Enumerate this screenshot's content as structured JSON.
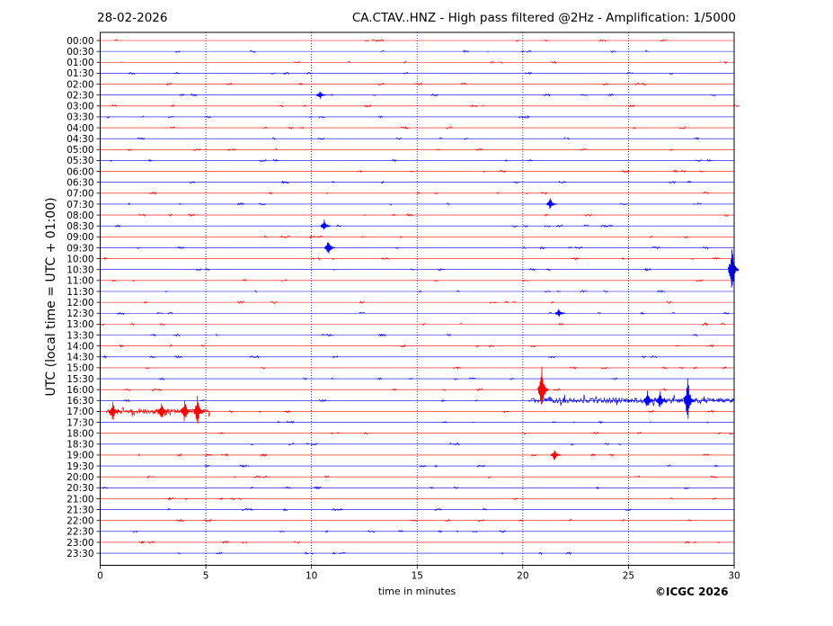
{
  "header": {
    "date": "28-02-2026",
    "title": "CA.CTAV..HNZ - High pass filtered @2Hz - Amplification: 1/5000"
  },
  "footer": {
    "copyright": "©ICGC 2026"
  },
  "colors": {
    "trace_a": "#ff0000",
    "trace_b": "#0000ff",
    "grid": "#00008b",
    "axis": "#000000"
  },
  "chart_data": {
    "type": "line",
    "xlabel": "time in minutes",
    "ylabel": "UTC (local time = UTC + 01:00)",
    "xlim": [
      0,
      30
    ],
    "xticks": [
      0,
      5,
      10,
      15,
      20,
      25,
      30
    ],
    "grid": "x-dotted",
    "row_labels": [
      "00:00",
      "00:30",
      "01:00",
      "01:30",
      "02:00",
      "02:30",
      "03:00",
      "03:30",
      "04:00",
      "04:30",
      "05:00",
      "05:30",
      "06:00",
      "06:30",
      "07:00",
      "07:30",
      "08:00",
      "08:30",
      "09:00",
      "09:30",
      "10:00",
      "10:30",
      "11:00",
      "11:30",
      "12:00",
      "12:30",
      "13:00",
      "13:30",
      "14:00",
      "14:30",
      "15:00",
      "15:30",
      "16:00",
      "16:30",
      "17:00",
      "17:30",
      "18:00",
      "18:30",
      "19:00",
      "19:30",
      "20:00",
      "20:30",
      "21:00",
      "21:30",
      "22:00",
      "22:30",
      "23:00",
      "23:30"
    ],
    "events": [
      {
        "row": "16:00",
        "minute": 20.9,
        "amplitude": 0.9
      },
      {
        "row": "16:30",
        "minute": 27.8,
        "amplitude": 0.8
      },
      {
        "row": "10:30",
        "minute": 29.9,
        "amplitude": 0.8
      },
      {
        "row": "17:00",
        "minute": 4.6,
        "amplitude": 0.5
      },
      {
        "row": "17:00",
        "minute": 4.0,
        "amplitude": 0.4
      },
      {
        "row": "17:00",
        "minute": 2.9,
        "amplitude": 0.35
      },
      {
        "row": "17:00",
        "minute": 0.6,
        "amplitude": 0.35
      },
      {
        "row": "16:30",
        "minute": 25.9,
        "amplitude": 0.35
      },
      {
        "row": "16:30",
        "minute": 26.5,
        "amplitude": 0.3
      },
      {
        "row": "09:30",
        "minute": 10.8,
        "amplitude": 0.3
      },
      {
        "row": "07:30",
        "minute": 21.3,
        "amplitude": 0.2
      },
      {
        "row": "08:30",
        "minute": 10.6,
        "amplitude": 0.2
      },
      {
        "row": "02:30",
        "minute": 10.4,
        "amplitude": 0.15
      },
      {
        "row": "19:00",
        "minute": 21.5,
        "amplitude": 0.2
      },
      {
        "row": "12:30",
        "minute": 21.7,
        "amplitude": 0.15
      }
    ],
    "noisy_segments": [
      {
        "row": "16:30",
        "from": 20.4,
        "to": 30,
        "amplitude": 0.22
      },
      {
        "row": "17:00",
        "from": 0.3,
        "to": 5.2,
        "amplitude": 0.2
      }
    ]
  }
}
